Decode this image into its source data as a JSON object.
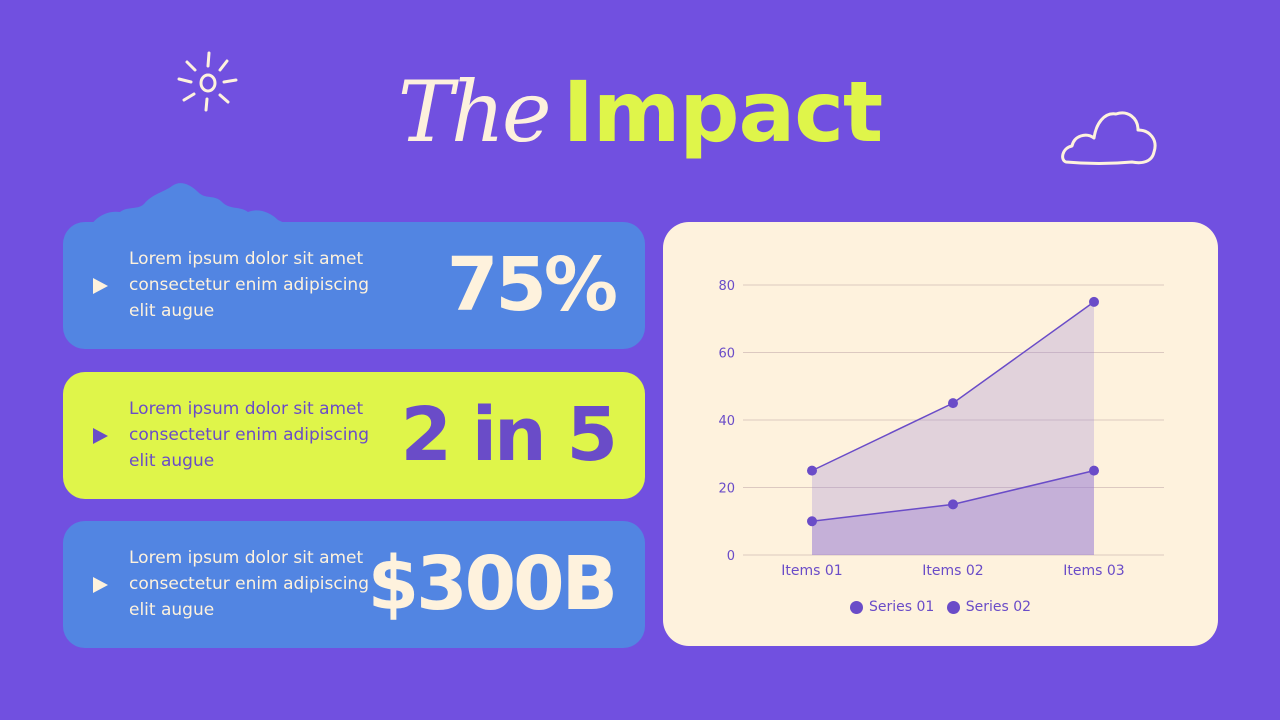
{
  "slide": {
    "title_part1": "The",
    "title_part2": "Impact"
  },
  "colors": {
    "background": "#7150e0",
    "blue_card": "#5285e2",
    "lime_card": "#dff54a",
    "cream": "#fef2dd",
    "purple": "#6a4cc8"
  },
  "stats": [
    {
      "description": "Lorem ipsum dolor sit amet consectetur enim adipiscing elit augue",
      "value": "75%",
      "style": "blue",
      "icon": "play-icon"
    },
    {
      "description": "Lorem ipsum dolor sit amet consectetur enim adipiscing elit augue",
      "value": "2 in 5",
      "style": "lime",
      "icon": "play-icon"
    },
    {
      "description": "Lorem ipsum dolor sit amet consectetur enim adipiscing elit augue",
      "value": "$300B",
      "style": "blue",
      "icon": "play-icon"
    }
  ],
  "decorations": [
    "sun-doodle-icon",
    "cloud-doodle-icon",
    "cloud-blob"
  ],
  "chart_data": {
    "type": "area",
    "categories": [
      "Items 01",
      "Items 02",
      "Items 03"
    ],
    "series": [
      {
        "name": "Series 01",
        "values": [
          25,
          45,
          75
        ]
      },
      {
        "name": "Series 02",
        "values": [
          10,
          15,
          25
        ]
      }
    ],
    "ylim": [
      0,
      80
    ],
    "yticks": [
      0,
      20,
      40,
      60,
      80
    ],
    "grid": true,
    "legend": "bottom",
    "title": "",
    "xlabel": "",
    "ylabel": ""
  }
}
